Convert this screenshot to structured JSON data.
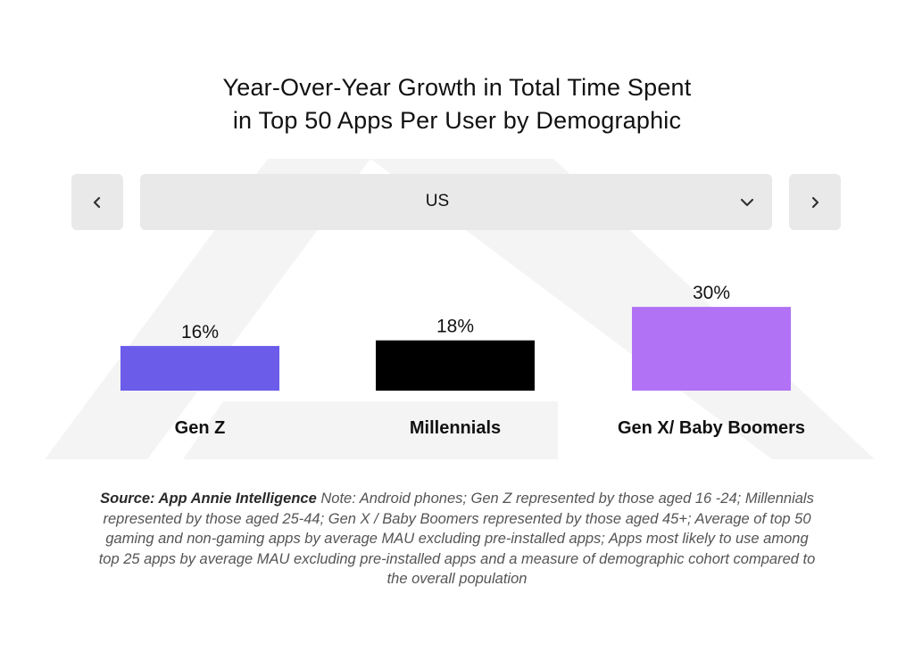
{
  "title_lines": [
    "Year-Over-Year Growth in Total Time Spent",
    "in Top 50 Apps Per User by Demographic"
  ],
  "selector": {
    "prev_icon": "chevron-left-icon",
    "next_icon": "chevron-right-icon",
    "dropdown_icon": "chevron-down-icon",
    "selected_value": "US"
  },
  "source_note": {
    "source_label": "Source: App Annie Intelligence",
    "note": "Note: Android phones; Gen Z represented by those aged 16 -24; Millennials represented by those aged 25-44; Gen X / Baby Boomers represented by those aged 45+; Average of top 50 gaming and non-gaming apps by average MAU excluding pre-installed apps; Apps most likely to use among top 25 apps by average MAU excluding pre-installed apps and a measure of demographic cohort compared to the overall population"
  },
  "chart_data": {
    "type": "bar",
    "categories": [
      "Gen Z",
      "Millennials",
      "Gen X/ Baby Boomers"
    ],
    "values": [
      16,
      18,
      30
    ],
    "value_labels": [
      "16%",
      "18%",
      "30%"
    ],
    "colors": [
      "#6b5cea",
      "#000000",
      "#b172f5"
    ],
    "title": "",
    "xlabel": "",
    "ylabel": "",
    "grid": false,
    "legend": "none"
  }
}
